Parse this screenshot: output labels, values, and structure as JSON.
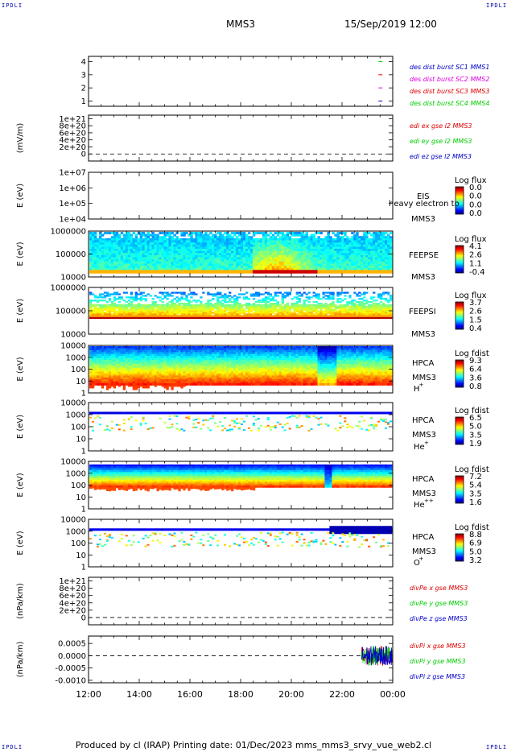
{
  "corner_tag": "IPDLI",
  "header": {
    "mission": "MMS3",
    "datetime": "15/Sep/2019 12:00"
  },
  "footer": {
    "text": "Produced by cl (IRAP)   Printing date: 01/Dec/2023   mms_mms3_srvy_vue_web2.cl"
  },
  "colors": {
    "red": "#dd0000",
    "green": "#00cc00",
    "blue": "#0000cc",
    "magenta": "#dd00dd"
  },
  "chart_data": [
    {
      "type": "line",
      "panel": "des-dist-burst",
      "yticks": [
        "1",
        "2",
        "3",
        "4"
      ],
      "ylim": [
        0.6,
        4.4
      ],
      "series": [
        {
          "name": "des dist burst SC1 MMS1",
          "color": "#0000cc"
        },
        {
          "name": "des dist burst SC2 MMS2",
          "color": "#dd00dd"
        },
        {
          "name": "des dist burst SC3 MMS3",
          "color": "#dd0000"
        },
        {
          "name": "des dist burst SC4 MMS4",
          "color": "#00cc00"
        }
      ],
      "marks": [
        {
          "x": 23.5,
          "y": 1
        },
        {
          "x": 23.5,
          "y": 2
        },
        {
          "x": 23.5,
          "y": 3
        },
        {
          "x": 23.5,
          "y": 4
        }
      ]
    },
    {
      "type": "line",
      "panel": "edi-e-gse",
      "ylabel": "(mV/m)",
      "yticks": [
        "0",
        "2e+20",
        "4e+20",
        "6e+20",
        "8e+20",
        "1e+21"
      ],
      "ylim": [
        -2e+20,
        1.1e+21
      ],
      "series": [
        {
          "name": "edi ex gse l2 MMS3",
          "color": "#dd0000"
        },
        {
          "name": "edi ey gse l2 MMS3",
          "color": "#00cc00"
        },
        {
          "name": "edi ez gse l2 MMS3",
          "color": "#0000cc"
        }
      ]
    },
    {
      "type": "heatmap",
      "panel": "EIS",
      "ylabel": "E (eV)",
      "yticks": [
        "1e+04",
        "1e+05",
        "1e+06",
        "1e+07"
      ],
      "labels": [
        "EIS",
        "heavy electron to",
        "MMS3"
      ],
      "colorbar": {
        "title": "Log flux",
        "ticks": [
          "0.0",
          "0.0",
          "0.0",
          "0.0"
        ]
      }
    },
    {
      "type": "heatmap",
      "panel": "FEEPSE",
      "ylabel": "E (eV)",
      "yticks": [
        "10000",
        "100000",
        "1000000"
      ],
      "labels": [
        "FEEPSE",
        "MMS3"
      ],
      "colorbar": {
        "title": "Log flux",
        "ticks": [
          "4.1",
          "2.6",
          "1.1",
          "-0.4"
        ]
      }
    },
    {
      "type": "heatmap",
      "panel": "FEEPSI",
      "ylabel": "E (eV)",
      "yticks": [
        "10000",
        "100000",
        "1000000"
      ],
      "labels": [
        "FEEPSI",
        "MMS3"
      ],
      "colorbar": {
        "title": "Log flux",
        "ticks": [
          "3.7",
          "2.6",
          "1.5",
          "0.4"
        ]
      }
    },
    {
      "type": "heatmap",
      "panel": "HPCA-H",
      "ylabel": "E (eV)",
      "yticks": [
        "1",
        "10",
        "100",
        "1000",
        "10000"
      ],
      "labels": [
        "HPCA",
        "MMS3",
        "H",
        "+"
      ],
      "colorbar": {
        "title": "Log fdist",
        "ticks": [
          "9.3",
          "6.4",
          "3.6",
          "0.8"
        ]
      }
    },
    {
      "type": "heatmap",
      "panel": "HPCA-He",
      "ylabel": "E (eV)",
      "yticks": [
        "1",
        "10",
        "100",
        "1000",
        "10000"
      ],
      "labels": [
        "HPCA",
        "MMS3",
        "He",
        "+"
      ],
      "colorbar": {
        "title": "Log fdist",
        "ticks": [
          "6.5",
          "5.0",
          "3.5",
          "1.9"
        ]
      }
    },
    {
      "type": "heatmap",
      "panel": "HPCA-He2",
      "ylabel": "E (eV)",
      "yticks": [
        "1",
        "10",
        "100",
        "1000",
        "10000"
      ],
      "labels": [
        "HPCA",
        "MMS3",
        "He",
        "++"
      ],
      "colorbar": {
        "title": "Log fdist",
        "ticks": [
          "7.2",
          "5.4",
          "3.5",
          "1.6"
        ]
      }
    },
    {
      "type": "heatmap",
      "panel": "HPCA-O",
      "ylabel": "E (eV)",
      "yticks": [
        "1",
        "10",
        "100",
        "1000",
        "10000"
      ],
      "labels": [
        "HPCA",
        "MMS3",
        "O",
        "+"
      ],
      "colorbar": {
        "title": "Log fdist",
        "ticks": [
          "8.8",
          "6.9",
          "5.0",
          "3.2"
        ]
      }
    },
    {
      "type": "line",
      "panel": "divPe",
      "ylabel": "(nPa/km)",
      "yticks": [
        "0",
        "2e+20",
        "4e+20",
        "6e+20",
        "8e+20",
        "1e+21"
      ],
      "ylim": [
        -2e+20,
        1.1e+21
      ],
      "series": [
        {
          "name": "divPe x gse MMS3",
          "color": "#dd0000"
        },
        {
          "name": "divPe y gse MMS3",
          "color": "#00cc00"
        },
        {
          "name": "divPe z gse MMS3",
          "color": "#0000cc"
        }
      ]
    },
    {
      "type": "line",
      "panel": "divPi",
      "ylabel": "(nPa/km)",
      "yticks": [
        "-0.0010",
        "-0.0005",
        "0.0000",
        "0.0005"
      ],
      "ylim": [
        -0.0011,
        0.0008
      ],
      "series": [
        {
          "name": "divPi x gse MMS3",
          "color": "#dd0000"
        },
        {
          "name": "divPi y gse MMS3",
          "color": "#00cc00"
        },
        {
          "name": "divPi z gse MMS3",
          "color": "#0000cc"
        }
      ],
      "burst": {
        "x_start": 22.8,
        "x_end": 24.0,
        "amplitude": 0.0004
      }
    }
  ],
  "x_axis": {
    "ticks": [
      "12:00",
      "14:00",
      "16:00",
      "18:00",
      "20:00",
      "22:00",
      "00:00"
    ],
    "range_hours": [
      12,
      24
    ]
  }
}
